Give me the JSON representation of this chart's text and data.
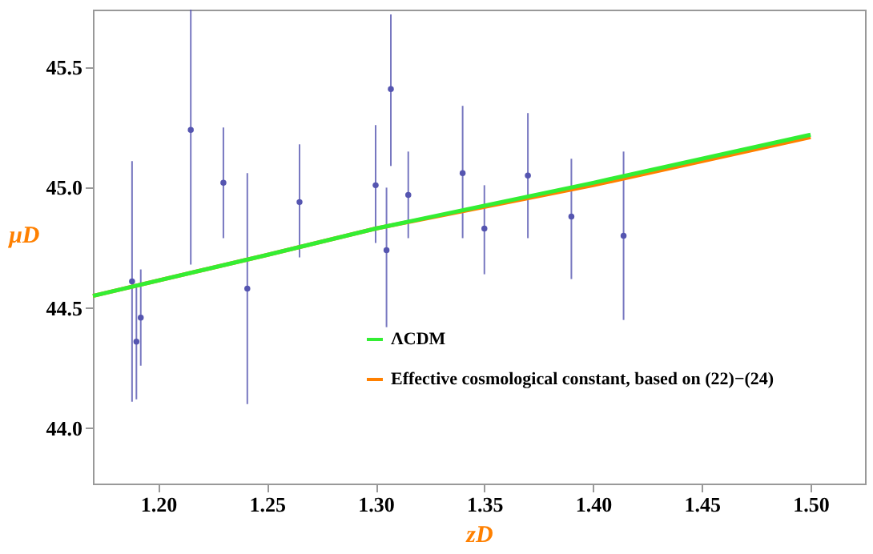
{
  "chart_data": {
    "type": "scatter",
    "xlabel": "zD",
    "ylabel": "μD",
    "xlim": [
      1.17,
      1.525
    ],
    "ylim": [
      43.77,
      45.74
    ],
    "xticks": [
      {
        "value": 1.2,
        "label": "1.20"
      },
      {
        "value": 1.25,
        "label": "1.25"
      },
      {
        "value": 1.3,
        "label": "1.30"
      },
      {
        "value": 1.35,
        "label": "1.35"
      },
      {
        "value": 1.4,
        "label": "1.40"
      },
      {
        "value": 1.45,
        "label": "1.45"
      },
      {
        "value": 1.5,
        "label": "1.50"
      }
    ],
    "yticks": [
      {
        "value": 44,
        "label": "44.0"
      },
      {
        "value": 44.5,
        "label": "44.5"
      },
      {
        "value": 45,
        "label": "45.0"
      },
      {
        "value": 45.5,
        "label": "45.5"
      }
    ],
    "grid": false,
    "legend": "bottom",
    "marker": "circle",
    "series": [
      {
        "color": "#5555b0",
        "x": [
          1.188,
          1.19,
          1.192,
          1.215,
          1.23,
          1.241,
          1.265,
          1.3,
          1.305,
          1.307,
          1.315,
          1.34,
          1.35,
          1.37,
          1.39,
          1.414
        ],
        "values": [
          44.61,
          44.36,
          44.46,
          45.24,
          45.02,
          44.58,
          44.94,
          45.01,
          44.74,
          45.41,
          44.97,
          45.06,
          44.83,
          45.05,
          44.88,
          44.8
        ],
        "errors": [
          [
            44.11,
            45.11
          ],
          [
            44.12,
            44.6
          ],
          [
            44.26,
            44.66
          ],
          [
            44.68,
            45.74
          ],
          [
            44.79,
            45.25
          ],
          [
            44.1,
            45.06
          ],
          [
            44.71,
            45.18
          ],
          [
            44.77,
            45.26
          ],
          [
            44.42,
            45.0
          ],
          [
            45.09,
            45.72
          ],
          [
            44.79,
            45.15
          ],
          [
            44.79,
            45.34
          ],
          [
            44.64,
            45.01
          ],
          [
            44.79,
            45.31
          ],
          [
            44.62,
            45.12
          ],
          [
            44.45,
            45.15
          ]
        ]
      },
      {
        "type": "line",
        "marker": "none",
        "name": "ΛCDM",
        "color": "#33ee33",
        "x": [
          1.17,
          1.25,
          1.3,
          1.4,
          1.5
        ],
        "values": [
          44.55,
          44.72,
          44.83,
          45.02,
          45.22
        ]
      },
      {
        "type": "line",
        "marker": "none",
        "name": "Effective cosmological constant, based on (22)−(24)",
        "color": "#ff8000",
        "x": [
          1.17,
          1.25,
          1.3,
          1.4,
          1.5
        ],
        "values": [
          44.55,
          44.72,
          44.83,
          45.01,
          45.21
        ]
      }
    ]
  }
}
